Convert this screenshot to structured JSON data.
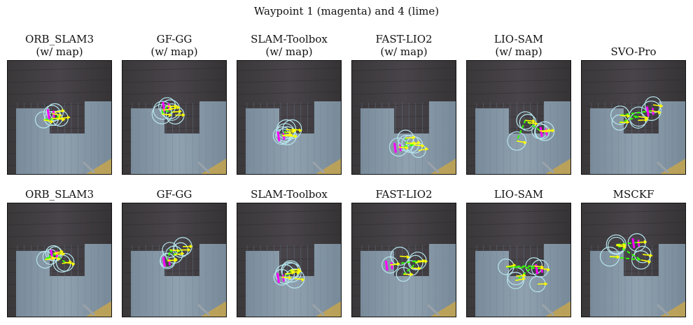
{
  "figure": {
    "suptitle": "Waypoint 1 (magenta) and 4 (lime)",
    "colors": {
      "waypoint_1": "#ff00ff",
      "waypoint_4": "#33ff00",
      "heading_arrow": "#ffff00",
      "uncertainty_circle": "#b7e6ee"
    },
    "rows": [
      {
        "panels": [
          {
            "title_line1": "ORB_SLAM3",
            "title_line2": "(w/ map)"
          },
          {
            "title_line1": "GF-GG",
            "title_line2": "(w/ map)"
          },
          {
            "title_line1": "SLAM-Toolbox",
            "title_line2": "(w/ map)"
          },
          {
            "title_line1": "FAST-LIO2",
            "title_line2": "(w/ map)"
          },
          {
            "title_line1": "LIO-SAM",
            "title_line2": "(w/ map)"
          },
          {
            "title_line1": "SVO-Pro",
            "title_line2": ""
          }
        ]
      },
      {
        "panels": [
          {
            "title_line1": "ORB_SLAM3",
            "title_line2": ""
          },
          {
            "title_line1": "GF-GG",
            "title_line2": ""
          },
          {
            "title_line1": "SLAM-Toolbox",
            "title_line2": ""
          },
          {
            "title_line1": "FAST-LIO2",
            "title_line2": ""
          },
          {
            "title_line1": "LIO-SAM",
            "title_line2": ""
          },
          {
            "title_line1": "MSCKF",
            "title_line2": ""
          }
        ]
      }
    ]
  }
}
